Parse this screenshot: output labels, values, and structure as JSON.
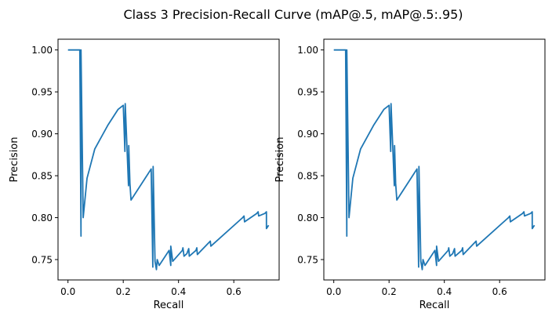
{
  "title": "Class 3 Precision-Recall Curve (mAP@.5, mAP@.5:.95)",
  "chart_data": [
    {
      "type": "line",
      "xlabel": "Recall",
      "ylabel": "Precision",
      "xlim": [
        -0.036,
        0.764
      ],
      "ylim": [
        0.7257,
        1.0128
      ],
      "xticks": [
        0.0,
        0.2,
        0.4,
        0.6
      ],
      "xtick_labels": [
        "0.0",
        "0.2",
        "0.4",
        "0.6"
      ],
      "yticks": [
        0.75,
        0.8,
        0.85,
        0.9,
        0.95,
        1.0
      ],
      "ytick_labels": [
        "0.75",
        "0.80",
        "0.85",
        "0.90",
        "0.95",
        "1.00"
      ],
      "grid": false,
      "color": "#1f77b4",
      "series": [
        {
          "x": [
            0,
            0.043,
            0.047,
            0.047,
            0.055,
            0.069,
            0.097,
            0.144,
            0.181,
            0.2,
            0.206,
            0.207,
            0.219,
            0.22,
            0.224,
            0.228,
            0.301,
            0.307,
            0.308,
            0.315,
            0.32,
            0.323,
            0.33,
            0.366,
            0.372,
            0.372,
            0.379,
            0.414,
            0.416,
            0.42,
            0.43,
            0.437,
            0.439,
            0.463,
            0.466,
            0.468,
            0.515,
            0.517,
            0.632,
            0.637,
            0.639,
            0.683,
            0.688,
            0.69,
            0.712,
            0.718,
            0.718,
            0.726
          ],
          "y": [
            1.0,
            1.0,
            0.778,
            1.0,
            0.8,
            0.847,
            0.882,
            0.91,
            0.929,
            0.934,
            0.879,
            0.936,
            0.838,
            0.886,
            0.841,
            0.821,
            0.858,
            0.741,
            0.861,
            0.748,
            0.738,
            0.75,
            0.743,
            0.761,
            0.743,
            0.766,
            0.748,
            0.761,
            0.764,
            0.754,
            0.757,
            0.763,
            0.754,
            0.761,
            0.764,
            0.756,
            0.772,
            0.766,
            0.8,
            0.802,
            0.795,
            0.805,
            0.807,
            0.802,
            0.805,
            0.807,
            0.787,
            0.791
          ]
        }
      ]
    },
    {
      "type": "line",
      "xlabel": "Recall",
      "ylabel": "Precision",
      "xlim": [
        -0.036,
        0.764
      ],
      "ylim": [
        0.7257,
        1.0128
      ],
      "xticks": [
        0.0,
        0.2,
        0.4,
        0.6
      ],
      "xtick_labels": [
        "0.0",
        "0.2",
        "0.4",
        "0.6"
      ],
      "yticks": [
        0.75,
        0.8,
        0.85,
        0.9,
        0.95,
        1.0
      ],
      "ytick_labels": [
        "0.75",
        "0.80",
        "0.85",
        "0.90",
        "0.95",
        "1.00"
      ],
      "grid": false,
      "color": "#1f77b4",
      "series": [
        {
          "x": [
            0,
            0.043,
            0.047,
            0.047,
            0.055,
            0.069,
            0.097,
            0.144,
            0.181,
            0.2,
            0.206,
            0.207,
            0.219,
            0.22,
            0.224,
            0.228,
            0.301,
            0.307,
            0.308,
            0.315,
            0.32,
            0.323,
            0.33,
            0.366,
            0.372,
            0.372,
            0.379,
            0.414,
            0.416,
            0.42,
            0.43,
            0.437,
            0.439,
            0.463,
            0.466,
            0.468,
            0.515,
            0.517,
            0.632,
            0.637,
            0.639,
            0.683,
            0.688,
            0.69,
            0.712,
            0.718,
            0.718,
            0.726
          ],
          "y": [
            1.0,
            1.0,
            0.778,
            1.0,
            0.8,
            0.847,
            0.882,
            0.91,
            0.929,
            0.934,
            0.879,
            0.936,
            0.838,
            0.886,
            0.841,
            0.821,
            0.858,
            0.741,
            0.861,
            0.748,
            0.738,
            0.75,
            0.743,
            0.761,
            0.743,
            0.766,
            0.748,
            0.761,
            0.764,
            0.754,
            0.757,
            0.763,
            0.754,
            0.761,
            0.764,
            0.756,
            0.772,
            0.766,
            0.8,
            0.802,
            0.795,
            0.805,
            0.807,
            0.802,
            0.805,
            0.807,
            0.787,
            0.791
          ]
        }
      ]
    }
  ]
}
